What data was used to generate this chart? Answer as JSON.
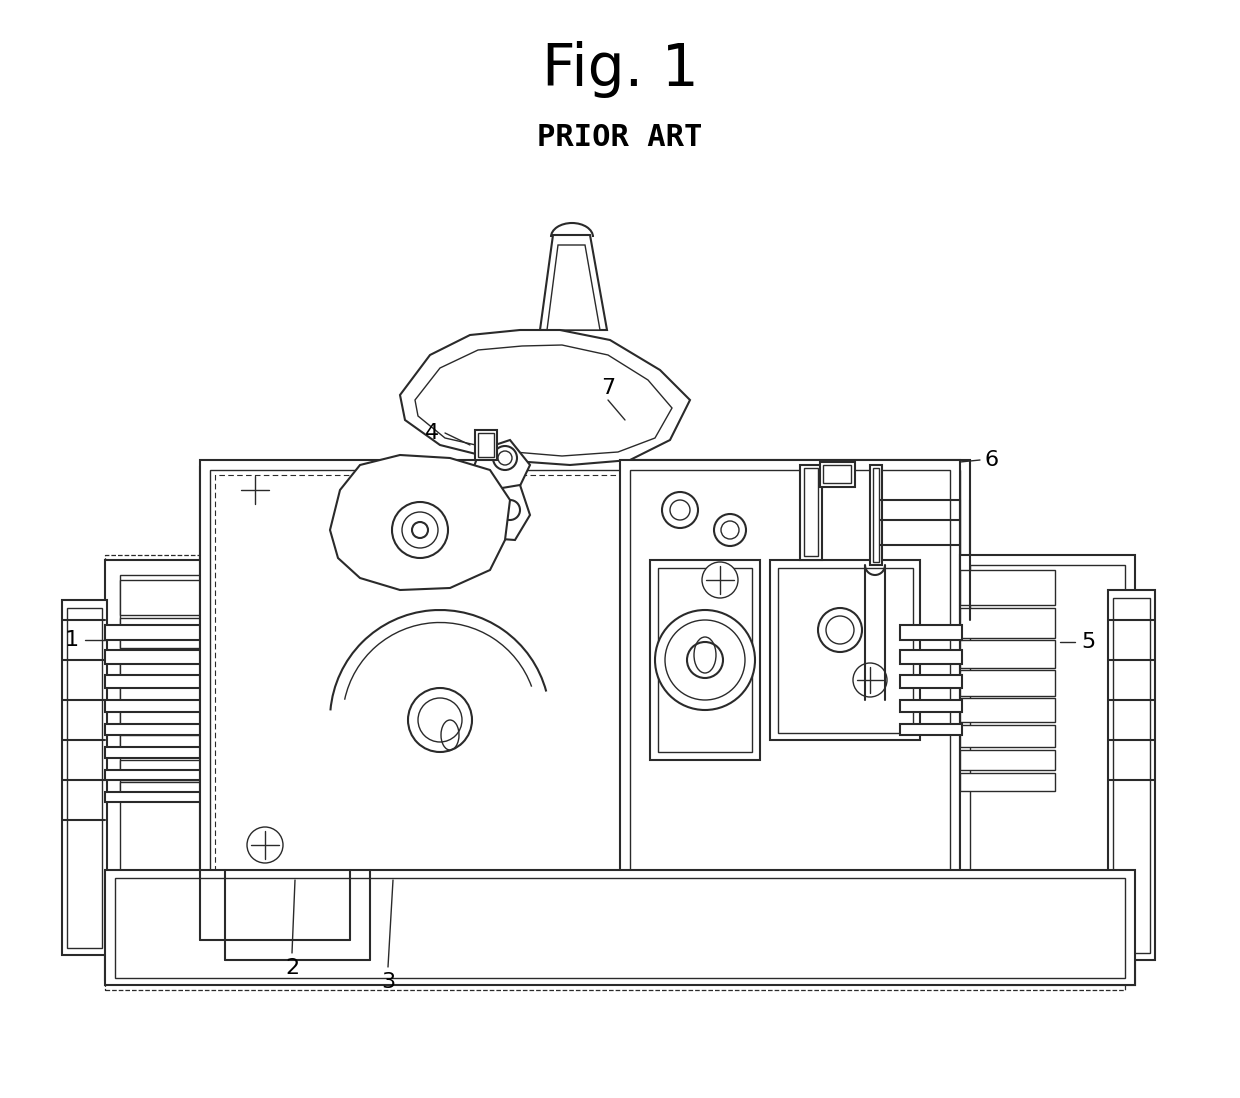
{
  "title": "Fig. 1",
  "subtitle": "PRIOR ART",
  "title_fontsize": 42,
  "subtitle_fontsize": 22,
  "background_color": "#ffffff",
  "line_color": "#2a2a2a",
  "fig_width": 12.4,
  "fig_height": 10.98
}
